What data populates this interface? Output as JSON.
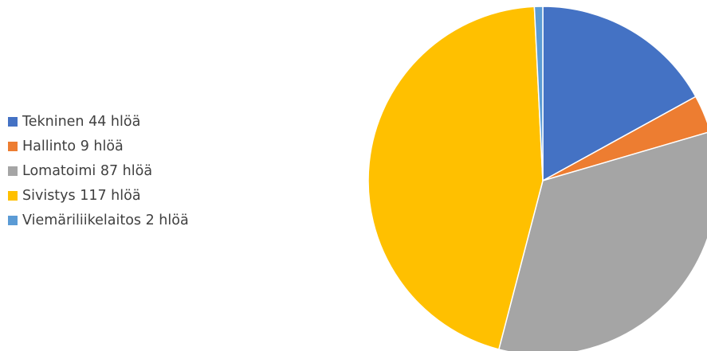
{
  "chart_data": {
    "type": "pie",
    "title": "",
    "legend_position": "left",
    "slices": [
      {
        "label": "Tekninen 44 hlöä",
        "value": 44,
        "color": "#4472C4"
      },
      {
        "label": "Hallinto 9 hlöä",
        "value": 9,
        "color": "#ED7D31"
      },
      {
        "label": "Lomatoimi 87 hlöä",
        "value": 87,
        "color": "#A5A5A5"
      },
      {
        "label": "Sivistys 117 hlöä",
        "value": 117,
        "color": "#FFC000"
      },
      {
        "label": "Viemäriliikelaitos 2 hlöä",
        "value": 2,
        "color": "#5B9BD5"
      }
    ]
  }
}
